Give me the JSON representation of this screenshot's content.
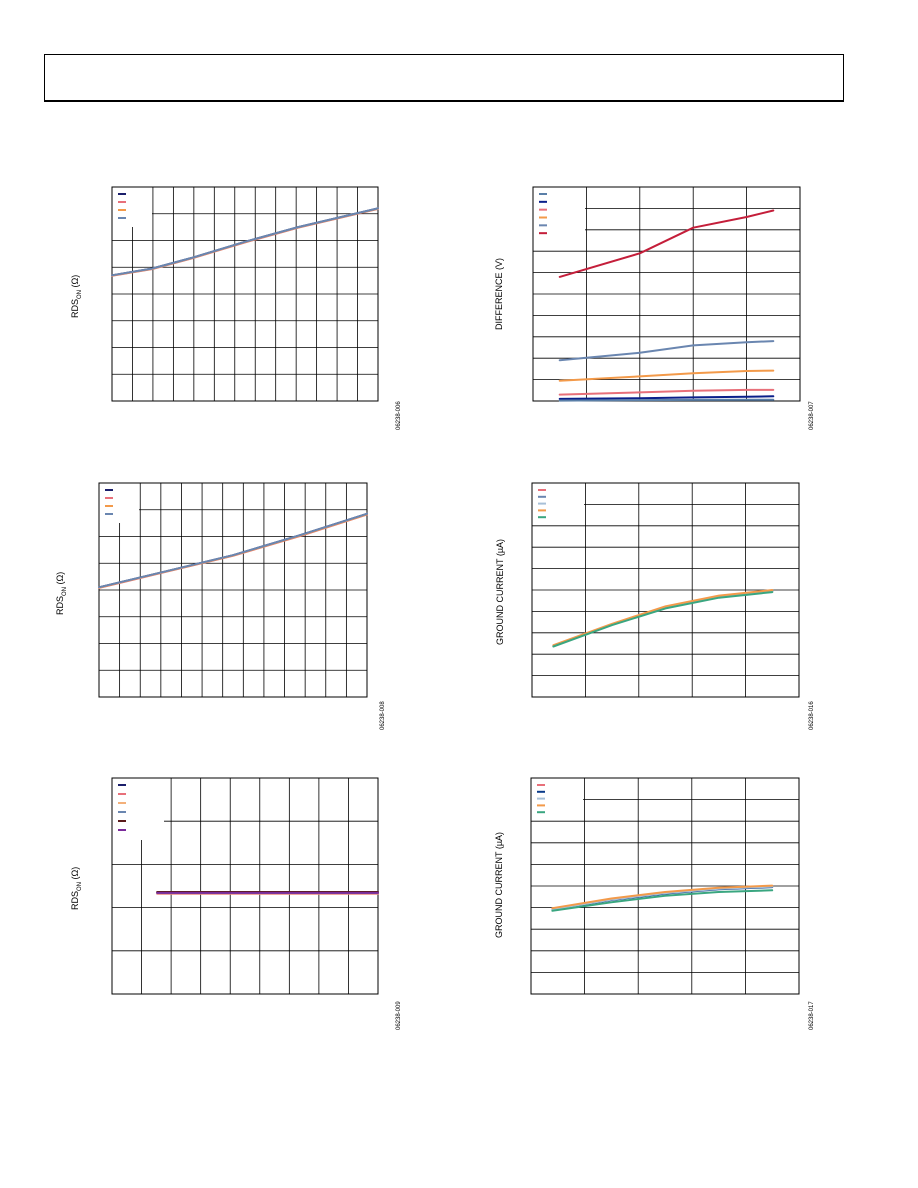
{
  "page": {
    "header_text": ""
  },
  "charts": [
    {
      "id": "c1",
      "ylabel_main": "RDS",
      "ylabel_sub": "ON",
      "ylabel_unit": " (Ω)",
      "figure_id": "06238-006",
      "legend_colors": [
        "#1b1f6b",
        "#e8707a",
        "#f39a4a",
        "#6a86b0"
      ],
      "chart_data": {
        "type": "line",
        "title": "",
        "xlabel": "",
        "ylabel": "RDS ON (Ω)",
        "grid": true,
        "legend": "top-left",
        "xlim": [
          0,
          1
        ],
        "ylim": [
          0,
          8
        ],
        "series": [
          {
            "color": "#1b1f6b",
            "x": [
              0,
              0.15,
              0.3,
              0.5,
              0.7,
              1
            ],
            "y": [
              4.7,
              4.95,
              5.35,
              5.95,
              6.5,
              7.2
            ]
          },
          {
            "color": "#e8707a",
            "x": [
              0,
              0.15,
              0.3,
              0.5,
              0.7,
              1
            ],
            "y": [
              4.68,
              4.93,
              5.33,
              5.93,
              6.48,
              7.18
            ]
          },
          {
            "color": "#f39a4a",
            "x": [
              0,
              0.15,
              0.3,
              0.5,
              0.7,
              1
            ],
            "y": [
              4.69,
              4.94,
              5.34,
              5.94,
              6.49,
              7.19
            ]
          },
          {
            "color": "#6a86b0",
            "x": [
              0,
              0.15,
              0.3,
              0.5,
              0.7,
              1
            ],
            "y": [
              4.7,
              4.95,
              5.35,
              5.95,
              6.5,
              7.2
            ]
          }
        ]
      }
    },
    {
      "id": "c2",
      "ylabel_main": "DIFFERENCE (V)",
      "ylabel_sub": "",
      "ylabel_unit": "",
      "figure_id": "06238-007",
      "legend_colors": [
        "#5a7fa8",
        "#0a1f8a",
        "#e8707a",
        "#f39a4a",
        "#6a86b0",
        "#c41e3a"
      ],
      "chart_data": {
        "type": "line",
        "title": "",
        "xlabel": "",
        "ylabel": "DIFFERENCE (V)",
        "grid": true,
        "legend": "top-left",
        "xlim": [
          0,
          1
        ],
        "ylim": [
          0,
          10
        ],
        "series": [
          {
            "color": "#c41e3a",
            "x": [
              0.1,
              0.4,
              0.6,
              0.8,
              0.9
            ],
            "y": [
              5.8,
              6.9,
              8.1,
              8.6,
              8.9
            ]
          },
          {
            "color": "#6a86b0",
            "x": [
              0.1,
              0.4,
              0.6,
              0.8,
              0.9
            ],
            "y": [
              1.9,
              2.25,
              2.6,
              2.75,
              2.8
            ]
          },
          {
            "color": "#f39a4a",
            "x": [
              0.1,
              0.4,
              0.6,
              0.8,
              0.9
            ],
            "y": [
              0.95,
              1.15,
              1.3,
              1.4,
              1.42
            ]
          },
          {
            "color": "#e8707a",
            "x": [
              0.1,
              0.4,
              0.6,
              0.8,
              0.9
            ],
            "y": [
              0.3,
              0.4,
              0.48,
              0.52,
              0.52
            ]
          },
          {
            "color": "#0a1f8a",
            "x": [
              0.1,
              0.4,
              0.6,
              0.8,
              0.9
            ],
            "y": [
              0.1,
              0.13,
              0.17,
              0.2,
              0.22
            ]
          },
          {
            "color": "#5a7fa8",
            "x": [
              0.1,
              0.4,
              0.6,
              0.8,
              0.9
            ],
            "y": [
              0.02,
              0.04,
              0.05,
              0.06,
              0.06
            ]
          }
        ]
      }
    },
    {
      "id": "c3",
      "ylabel_main": "RDS",
      "ylabel_sub": "ON",
      "ylabel_unit": " (Ω)",
      "figure_id": "06238-008",
      "legend_colors": [
        "#1b1f6b",
        "#e8707a",
        "#f39a4a",
        "#6a86b0"
      ],
      "chart_data": {
        "type": "line",
        "title": "",
        "xlabel": "",
        "ylabel": "RDS ON (Ω)",
        "grid": true,
        "legend": "top-left",
        "xlim": [
          0,
          1
        ],
        "ylim": [
          0,
          8
        ],
        "series": [
          {
            "color": "#1b1f6b",
            "x": [
              0,
              0.25,
              0.5,
              0.75,
              1
            ],
            "y": [
              4.1,
              4.7,
              5.3,
              6.05,
              6.85
            ]
          },
          {
            "color": "#e8707a",
            "x": [
              0,
              0.25,
              0.5,
              0.75,
              1
            ],
            "y": [
              4.08,
              4.68,
              5.28,
              6.02,
              6.82
            ]
          },
          {
            "color": "#f39a4a",
            "x": [
              0,
              0.25,
              0.5,
              0.75,
              1
            ],
            "y": [
              4.09,
              4.69,
              5.29,
              6.03,
              6.83
            ]
          },
          {
            "color": "#6a86b0",
            "x": [
              0,
              0.25,
              0.5,
              0.75,
              1
            ],
            "y": [
              4.1,
              4.7,
              5.3,
              6.05,
              6.85
            ]
          }
        ]
      }
    },
    {
      "id": "c4",
      "ylabel_main": "GROUND CURRENT (µA)",
      "ylabel_sub": "",
      "ylabel_unit": "",
      "figure_id": "06238-016",
      "legend_colors": [
        "#e8707a",
        "#6a86b0",
        "#a8c0d8",
        "#f39a4a",
        "#3aa680"
      ],
      "chart_data": {
        "type": "line",
        "title": "",
        "xlabel": "",
        "ylabel": "GROUND CURRENT (µA)",
        "grid": true,
        "legend": "top-left",
        "xlim": [
          0,
          1
        ],
        "ylim": [
          0,
          10
        ],
        "series": [
          {
            "color": "#e8707a",
            "x": [
              0.08,
              0.3,
              0.5,
              0.7,
              0.9
            ],
            "y": [
              2.4,
              3.4,
              4.2,
              4.7,
              4.95
            ]
          },
          {
            "color": "#6a86b0",
            "x": [
              0.08,
              0.3,
              0.5,
              0.7,
              0.9
            ],
            "y": [
              2.38,
              3.38,
              4.18,
              4.68,
              4.93
            ]
          },
          {
            "color": "#a8c0d8",
            "x": [
              0.08,
              0.3,
              0.5,
              0.7,
              0.9
            ],
            "y": [
              2.39,
              3.39,
              4.19,
              4.69,
              4.94
            ]
          },
          {
            "color": "#f39a4a",
            "x": [
              0.08,
              0.3,
              0.5,
              0.7,
              0.9
            ],
            "y": [
              2.42,
              3.42,
              4.24,
              4.74,
              5.0
            ]
          },
          {
            "color": "#3aa680",
            "x": [
              0.08,
              0.3,
              0.5,
              0.7,
              0.9
            ],
            "y": [
              2.36,
              3.36,
              4.14,
              4.64,
              4.9
            ]
          }
        ]
      }
    },
    {
      "id": "c5",
      "ylabel_main": "RDS",
      "ylabel_sub": "ON",
      "ylabel_unit": " (Ω)",
      "figure_id": "06238-009",
      "legend_colors": [
        "#1b1f6b",
        "#e8707a",
        "#f3b07a",
        "#6a86b0",
        "#5a1a1a",
        "#7a2a9a"
      ],
      "chart_data": {
        "type": "line",
        "title": "",
        "xlabel": "",
        "ylabel": "RDS ON (Ω)",
        "grid": true,
        "legend": "top-left",
        "xlim": [
          0,
          1
        ],
        "ylim": [
          0,
          5
        ],
        "series": [
          {
            "color": "#1b1f6b",
            "x": [
              0.17,
              0.5,
              1
            ],
            "y": [
              2.35,
              2.35,
              2.35
            ]
          },
          {
            "color": "#e8707a",
            "x": [
              0.17,
              0.5,
              1
            ],
            "y": [
              2.32,
              2.32,
              2.32
            ]
          },
          {
            "color": "#f3b07a",
            "x": [
              0.17,
              0.5,
              1
            ],
            "y": [
              2.33,
              2.33,
              2.33
            ]
          },
          {
            "color": "#6a86b0",
            "x": [
              0.17,
              0.5,
              1
            ],
            "y": [
              2.34,
              2.34,
              2.34
            ]
          },
          {
            "color": "#5a1a1a",
            "x": [
              0.17,
              0.5,
              1
            ],
            "y": [
              2.36,
              2.36,
              2.36
            ]
          },
          {
            "color": "#7a2a9a",
            "x": [
              0.17,
              0.5,
              1
            ],
            "y": [
              2.34,
              2.34,
              2.34
            ]
          }
        ]
      }
    },
    {
      "id": "c6",
      "ylabel_main": "GROUND CURRENT (µA)",
      "ylabel_sub": "",
      "ylabel_unit": "",
      "figure_id": "06238-017",
      "legend_colors": [
        "#e8707a",
        "#0a3a8a",
        "#a8c0d8",
        "#f39a4a",
        "#3aa680"
      ],
      "chart_data": {
        "type": "line",
        "title": "",
        "xlabel": "",
        "ylabel": "GROUND CURRENT (µA)",
        "grid": true,
        "legend": "top-left",
        "xlim": [
          0,
          1
        ],
        "ylim": [
          0,
          10
        ],
        "series": [
          {
            "color": "#e8707a",
            "x": [
              0.08,
              0.3,
              0.5,
              0.7,
              0.9
            ],
            "y": [
              3.95,
              4.4,
              4.7,
              4.9,
              5.0
            ]
          },
          {
            "color": "#0a3a8a",
            "x": [
              0.08,
              0.3,
              0.5,
              0.7,
              0.9
            ],
            "y": [
              3.9,
              4.35,
              4.65,
              4.85,
              4.95
            ]
          },
          {
            "color": "#a8c0d8",
            "x": [
              0.08,
              0.3,
              0.5,
              0.7,
              0.9
            ],
            "y": [
              3.92,
              4.37,
              4.67,
              4.87,
              4.97
            ]
          },
          {
            "color": "#f39a4a",
            "x": [
              0.08,
              0.3,
              0.5,
              0.7,
              0.9
            ],
            "y": [
              3.97,
              4.42,
              4.72,
              4.92,
              5.02
            ]
          },
          {
            "color": "#3aa680",
            "x": [
              0.08,
              0.3,
              0.5,
              0.7,
              0.9
            ],
            "y": [
              3.85,
              4.25,
              4.55,
              4.72,
              4.8
            ]
          }
        ]
      }
    }
  ]
}
